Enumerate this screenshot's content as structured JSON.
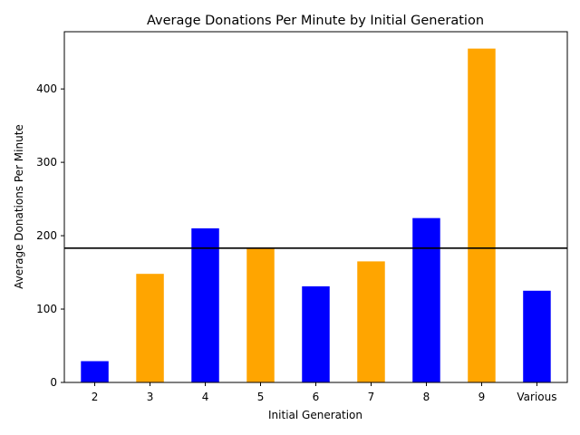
{
  "chart_data": {
    "type": "bar",
    "title": "Average Donations Per Minute by Initial Generation",
    "xlabel": "Initial Generation",
    "ylabel": "Average Donations Per Minute",
    "categories": [
      "2",
      "3",
      "4",
      "5",
      "6",
      "7",
      "8",
      "9",
      "Various"
    ],
    "values": [
      29,
      148,
      210,
      183,
      131,
      165,
      224,
      455,
      125
    ],
    "bar_colors": [
      "#0000ff",
      "#ffa500",
      "#0000ff",
      "#ffa500",
      "#0000ff",
      "#ffa500",
      "#0000ff",
      "#ffa500",
      "#0000ff"
    ],
    "yticks": [
      0,
      100,
      200,
      300,
      400
    ],
    "ylim": [
      0,
      478
    ],
    "reference_line": {
      "value": 183,
      "color": "#000000"
    },
    "grid": false,
    "legend": false
  }
}
